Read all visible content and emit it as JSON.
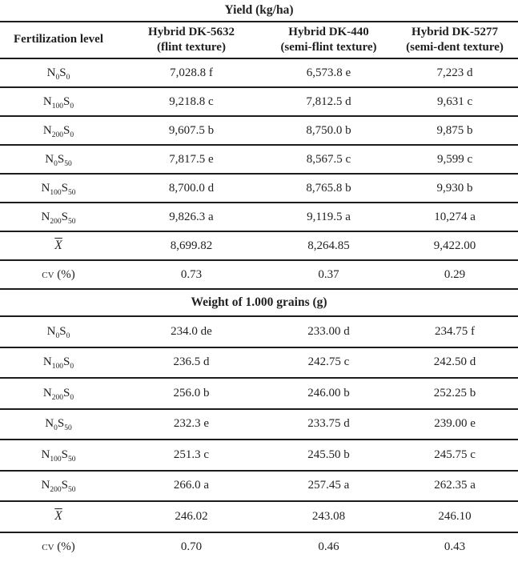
{
  "page": {
    "background": "#ffffff",
    "text_color": "#1f1f1f",
    "rule_color": "#1c1c1c"
  },
  "label_elements": {
    "n": "N",
    "s": "S"
  },
  "sections": [
    {
      "title": "Yield (kg/ha)",
      "header": {
        "col1": "Fertilization level",
        "cols": [
          {
            "line1": "Hybrid DK-5632",
            "line2": "(flint texture)"
          },
          {
            "line1": "Hybrid DK-440",
            "line2": "(semi-flint texture)"
          },
          {
            "line1": "Hybrid DK-5277",
            "line2": "(semi-dent texture)"
          }
        ]
      },
      "rows": [
        {
          "type": "ns",
          "n": "0",
          "s": "0",
          "values": [
            "7,028.8 f",
            "6,573.8 e",
            "7,223 d"
          ]
        },
        {
          "type": "ns",
          "n": "100",
          "s": "0",
          "values": [
            "9,218.8 c",
            "7,812.5 d",
            "9,631 c"
          ]
        },
        {
          "type": "ns",
          "n": "200",
          "s": "0",
          "values": [
            "9,607.5 b",
            "8,750.0 b",
            "9,875 b"
          ]
        },
        {
          "type": "ns",
          "n": "0",
          "s": "50",
          "values": [
            "7,817.5 e",
            "8,567.5 c",
            "9,599 c"
          ]
        },
        {
          "type": "ns",
          "n": "100",
          "s": "50",
          "values": [
            "8,700.0 d",
            "8,765.8 b",
            "9,930 b"
          ]
        },
        {
          "type": "ns",
          "n": "200",
          "s": "50",
          "values": [
            "9,826.3 a",
            "9,119.5 a",
            "10,274 a"
          ]
        },
        {
          "type": "xbar",
          "label": "X",
          "values": [
            "8,699.82",
            "8,264.85",
            "9,422.00"
          ]
        },
        {
          "type": "cv",
          "label": "cv (%)",
          "values": [
            "0.73",
            "0.37",
            "0.29"
          ]
        }
      ]
    },
    {
      "title": "Weight of 1.000 grains (g)",
      "rows": [
        {
          "type": "ns",
          "n": "0",
          "s": "0",
          "values": [
            "234.0 de",
            "233.00 d",
            "234.75 f"
          ]
        },
        {
          "type": "ns",
          "n": "100",
          "s": "0",
          "values": [
            "236.5 d",
            "242.75 c",
            "242.50 d"
          ]
        },
        {
          "type": "ns",
          "n": "200",
          "s": "0",
          "values": [
            "256.0 b",
            "246.00 b",
            "252.25 b"
          ]
        },
        {
          "type": "ns",
          "n": "0",
          "s": "50",
          "values": [
            "232.3 e",
            "233.75 d",
            "239.00 e"
          ]
        },
        {
          "type": "ns",
          "n": "100",
          "s": "50",
          "values": [
            "251.3 c",
            "245.50 b",
            "245.75 c"
          ]
        },
        {
          "type": "ns",
          "n": "200",
          "s": "50",
          "values": [
            "266.0 a",
            "257.45 a",
            "262.35 a"
          ]
        },
        {
          "type": "xbar",
          "label": "X",
          "values": [
            "246.02",
            "243.08",
            "246.10"
          ]
        },
        {
          "type": "cv",
          "label": "cv (%)",
          "values": [
            "0.70",
            "0.46",
            "0.43"
          ]
        }
      ]
    }
  ],
  "chart_data": {
    "type": "table",
    "title": "Yield (kg/ha) and Weight of 1.000 grains (g) by fertilization level and hybrid",
    "column_headers": [
      "Fertilization level",
      "Hybrid DK-5632 (flint texture)",
      "Hybrid DK-440 (semi-flint texture)",
      "Hybrid DK-5277 (semi-dent texture)"
    ],
    "yield_kg_ha": {
      "categories": [
        "N0S0",
        "N100S0",
        "N200S0",
        "N0S50",
        "N100S50",
        "N200S50",
        "mean",
        "cv_percent"
      ],
      "series": [
        {
          "name": "Hybrid DK-5632",
          "values": [
            7028.8,
            9218.8,
            9607.5,
            7817.5,
            8700.0,
            9826.3,
            8699.82,
            0.73
          ]
        },
        {
          "name": "Hybrid DK-440",
          "values": [
            6573.8,
            7812.5,
            8750.0,
            8567.5,
            8765.8,
            9119.5,
            8264.85,
            0.37
          ]
        },
        {
          "name": "Hybrid DK-5277",
          "values": [
            7223,
            9631,
            9875,
            9599,
            9930,
            10274,
            9422.0,
            0.29
          ]
        }
      ],
      "significance_letters": [
        [
          "f",
          "c",
          "b",
          "e",
          "d",
          "a"
        ],
        [
          "e",
          "d",
          "b",
          "c",
          "b",
          "a"
        ],
        [
          "d",
          "c",
          "b",
          "c",
          "b",
          "a"
        ]
      ]
    },
    "weight_1000_grains_g": {
      "categories": [
        "N0S0",
        "N100S0",
        "N200S0",
        "N0S50",
        "N100S50",
        "N200S50",
        "mean",
        "cv_percent"
      ],
      "series": [
        {
          "name": "Hybrid DK-5632",
          "values": [
            234.0,
            236.5,
            256.0,
            232.3,
            251.3,
            266.0,
            246.02,
            0.7
          ]
        },
        {
          "name": "Hybrid DK-440",
          "values": [
            233.0,
            242.75,
            246.0,
            233.75,
            245.5,
            257.45,
            243.08,
            0.46
          ]
        },
        {
          "name": "Hybrid DK-5277",
          "values": [
            234.75,
            242.5,
            252.25,
            239.0,
            245.75,
            262.35,
            246.1,
            0.43
          ]
        }
      ],
      "significance_letters": [
        [
          "de",
          "d",
          "b",
          "e",
          "c",
          "a"
        ],
        [
          "d",
          "c",
          "b",
          "d",
          "b",
          "a"
        ],
        [
          "f",
          "d",
          "b",
          "e",
          "c",
          "a"
        ]
      ]
    }
  }
}
